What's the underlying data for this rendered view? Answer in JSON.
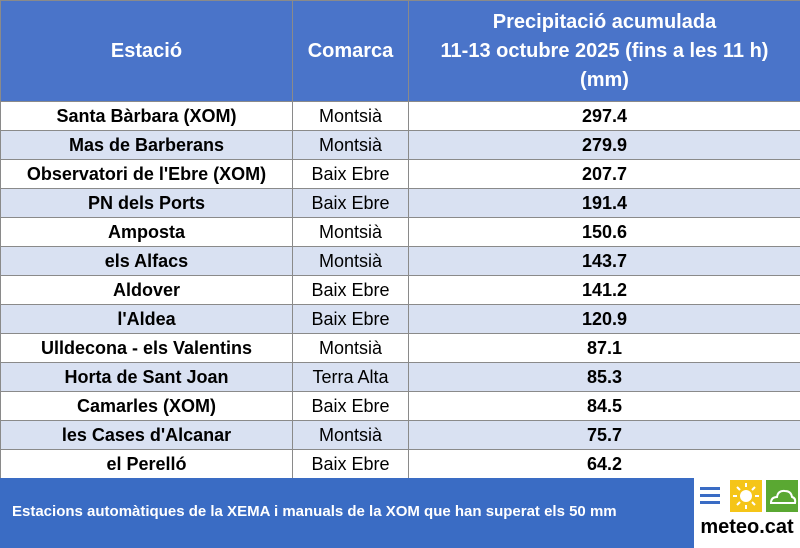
{
  "table": {
    "headers": {
      "station": "Estació",
      "comarca": "Comarca",
      "precip_lines": [
        "Precipitació acumulada",
        "11-13 octubre 2025 (fins a les 11 h)",
        "(mm)"
      ]
    },
    "rows": [
      {
        "station": "Santa Bàrbara (XOM)",
        "comarca": "Montsià",
        "value": "297.4"
      },
      {
        "station": "Mas de Barberans",
        "comarca": "Montsià",
        "value": "279.9"
      },
      {
        "station": "Observatori de l'Ebre (XOM)",
        "comarca": "Baix Ebre",
        "value": "207.7"
      },
      {
        "station": "PN dels Ports",
        "comarca": "Baix Ebre",
        "value": "191.4"
      },
      {
        "station": "Amposta",
        "comarca": "Montsià",
        "value": "150.6"
      },
      {
        "station": "els Alfacs",
        "comarca": "Montsià",
        "value": "143.7"
      },
      {
        "station": "Aldover",
        "comarca": "Baix Ebre",
        "value": "141.2"
      },
      {
        "station": "l'Aldea",
        "comarca": "Baix Ebre",
        "value": "120.9"
      },
      {
        "station": "Ulldecona - els Valentins",
        "comarca": "Montsià",
        "value": "87.1"
      },
      {
        "station": "Horta de Sant Joan",
        "comarca": "Terra Alta",
        "value": "85.3"
      },
      {
        "station": "Camarles (XOM)",
        "comarca": "Baix Ebre",
        "value": "84.5"
      },
      {
        "station": "les Cases d'Alcanar",
        "comarca": "Montsià",
        "value": "75.7"
      },
      {
        "station": "el Perelló",
        "comarca": "Baix Ebre",
        "value": "64.2"
      }
    ]
  },
  "footer": {
    "note": "Estacions automàtiques de la XEMA i manuals de la XOM que han superat els 50 mm"
  },
  "logo": {
    "text": "meteo.cat",
    "icons": [
      "fog-icon",
      "sun-icon",
      "cloud-icon"
    ]
  },
  "colors": {
    "header_bg": "#4a74c9",
    "band_bg": "#d9e1f2",
    "footer_bg": "#3a6cc4"
  }
}
